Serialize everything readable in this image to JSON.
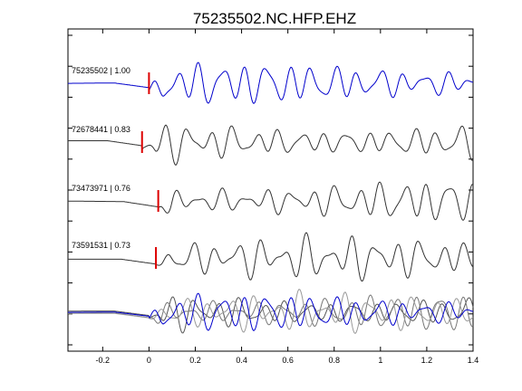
{
  "chart_data": {
    "type": "line",
    "title": "75235502.NC.HFP.EHZ",
    "xlabel": "",
    "ylabel": "",
    "xlim": [
      -0.35,
      1.4
    ],
    "xticks": [
      -0.2,
      0,
      0.2,
      0.4,
      0.6,
      0.8,
      1,
      1.2,
      1.4
    ],
    "xtick_labels": [
      "-0.2",
      "0",
      "0.2",
      "0.4",
      "0.6",
      "0.8",
      "1",
      "1.2",
      "1.4"
    ],
    "grid": false,
    "traces": [
      {
        "label": "75235502 | 1.00",
        "color": "#0000cc",
        "pick_time": 0.0
      },
      {
        "label": "72678441 | 0.83",
        "color": "#333333",
        "pick_time": -0.03
      },
      {
        "label": "73473971 | 0.76",
        "color": "#333333",
        "pick_time": 0.04
      },
      {
        "label": "73591531 | 0.73",
        "color": "#333333",
        "pick_time": 0.03
      }
    ],
    "stack": {
      "members": [
        "75235502",
        "72678441",
        "73473971",
        "73591531"
      ],
      "colors": [
        "#0000cc",
        "#555555",
        "#777777",
        "#999999"
      ]
    },
    "pick_color": "#dd0000"
  }
}
